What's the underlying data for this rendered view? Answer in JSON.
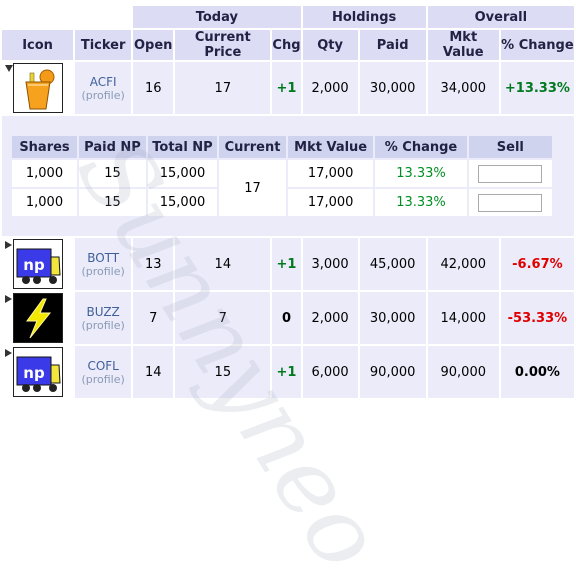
{
  "headers": {
    "groups": {
      "today": "Today",
      "holdings": "Holdings",
      "overall": "Overall"
    },
    "columns": {
      "icon": "Icon",
      "ticker": "Ticker",
      "open": "Open",
      "current_price": "Current Price",
      "chg": "Chg",
      "qty": "Qty",
      "paid": "Paid",
      "mkt_value": "Mkt Value",
      "pct_change": "% Change"
    }
  },
  "rows": [
    {
      "ticker": "ACFI",
      "profile": "(profile)",
      "open": "16",
      "current": "17",
      "chg": "+1",
      "qty": "2,000",
      "paid": "30,000",
      "mkt_value": "34,000",
      "pct": "+13.33%",
      "expanded": true,
      "icon": "orange-drink-icon"
    },
    {
      "ticker": "BOTT",
      "profile": "(profile)",
      "open": "13",
      "current": "14",
      "chg": "+1",
      "qty": "3,000",
      "paid": "45,000",
      "mkt_value": "42,000",
      "pct": "-6.67%",
      "expanded": false,
      "icon": "np-truck-icon"
    },
    {
      "ticker": "BUZZ",
      "profile": "(profile)",
      "open": "7",
      "current": "7",
      "chg": "0",
      "qty": "2,000",
      "paid": "30,000",
      "mkt_value": "14,000",
      "pct": "-53.33%",
      "expanded": false,
      "icon": "lightning-bolt-icon"
    },
    {
      "ticker": "COFL",
      "profile": "(profile)",
      "open": "14",
      "current": "15",
      "chg": "+1",
      "qty": "6,000",
      "paid": "90,000",
      "mkt_value": "90,000",
      "pct": "0.00%",
      "expanded": false,
      "icon": "np-truck-icon"
    }
  ],
  "lots": {
    "headers": {
      "shares": "Shares",
      "paid_np": "Paid NP",
      "total_np": "Total NP",
      "current": "Current",
      "mkt_value": "Mkt Value",
      "pct_change": "% Change",
      "sell": "Sell"
    },
    "current": "17",
    "items": [
      {
        "shares": "1,000",
        "paid_np": "15",
        "total_np": "15,000",
        "mkt_value": "17,000",
        "pct": "13.33%",
        "sell": ""
      },
      {
        "shares": "1,000",
        "paid_np": "15",
        "total_np": "15,000",
        "mkt_value": "17,000",
        "pct": "13.33%",
        "sell": ""
      }
    ]
  },
  "watermark": "Sunnyneo",
  "colors": {
    "header_bg": "#dcdcf4",
    "row_bg": "#ebebfa",
    "positive": "#007a1e",
    "negative": "#e00000"
  }
}
